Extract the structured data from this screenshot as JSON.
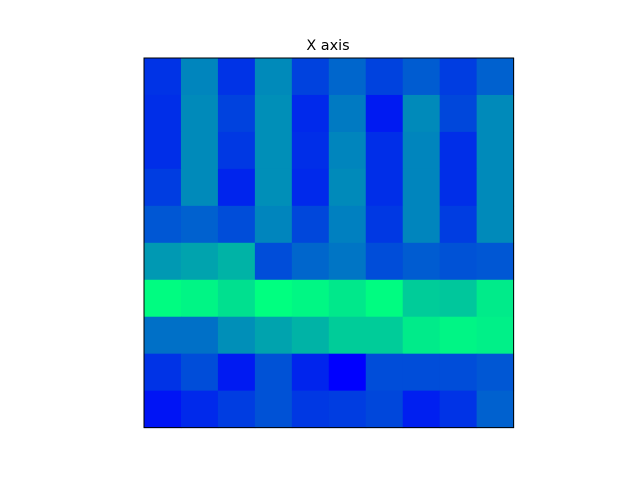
{
  "chart_data": {
    "type": "heatmap",
    "title": "X axis",
    "xlabel": "",
    "ylabel": "",
    "colormap": "winter",
    "colormap_endpoints": [
      "#0000ff",
      "#00ff80"
    ],
    "grid": false,
    "rows": 10,
    "cols": 10,
    "value_range": [
      0,
      1
    ],
    "values": [
      [
        0.2,
        0.52,
        0.2,
        0.54,
        0.26,
        0.4,
        0.26,
        0.36,
        0.24,
        0.38
      ],
      [
        0.18,
        0.54,
        0.26,
        0.56,
        0.16,
        0.48,
        0.1,
        0.54,
        0.28,
        0.54
      ],
      [
        0.18,
        0.54,
        0.22,
        0.56,
        0.18,
        0.52,
        0.18,
        0.52,
        0.18,
        0.54
      ],
      [
        0.24,
        0.54,
        0.14,
        0.56,
        0.16,
        0.54,
        0.18,
        0.52,
        0.18,
        0.54
      ],
      [
        0.34,
        0.38,
        0.3,
        0.52,
        0.28,
        0.5,
        0.22,
        0.52,
        0.24,
        0.54
      ],
      [
        0.6,
        0.64,
        0.7,
        0.3,
        0.4,
        0.46,
        0.3,
        0.36,
        0.32,
        0.34
      ],
      [
        0.99,
        0.96,
        0.88,
        1.0,
        0.97,
        0.91,
        0.99,
        0.8,
        0.78,
        0.92
      ],
      [
        0.44,
        0.44,
        0.56,
        0.64,
        0.7,
        0.8,
        0.8,
        0.92,
        0.96,
        0.94
      ],
      [
        0.2,
        0.3,
        0.1,
        0.32,
        0.14,
        0.0,
        0.3,
        0.3,
        0.3,
        0.34
      ],
      [
        0.08,
        0.16,
        0.24,
        0.32,
        0.22,
        0.24,
        0.28,
        0.12,
        0.2,
        0.38
      ]
    ]
  }
}
